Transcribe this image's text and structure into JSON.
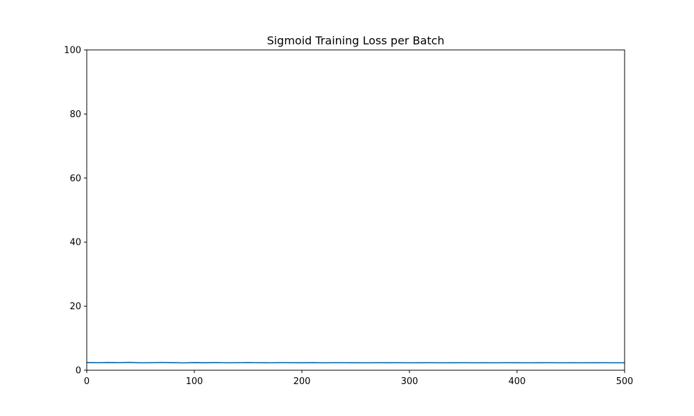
{
  "chart_data": {
    "type": "line",
    "title": "Sigmoid Training Loss per Batch",
    "xlabel": "",
    "ylabel": "",
    "xlim": [
      0,
      500
    ],
    "ylim": [
      0,
      100
    ],
    "xticks": [
      "0",
      "100",
      "200",
      "300",
      "400",
      "500"
    ],
    "yticks": [
      "0",
      "20",
      "40",
      "60",
      "80",
      "100"
    ],
    "grid": false,
    "series": [
      {
        "color": "#1f77b4",
        "x": [
          0,
          10,
          20,
          30,
          40,
          50,
          60,
          70,
          80,
          90,
          100,
          110,
          120,
          130,
          140,
          150,
          160,
          170,
          180,
          190,
          200,
          210,
          220,
          230,
          240,
          250,
          260,
          270,
          280,
          290,
          300,
          310,
          320,
          330,
          340,
          350,
          360,
          370,
          380,
          390,
          400,
          410,
          420,
          430,
          440,
          450,
          460,
          470,
          480,
          490,
          500
        ],
        "y": [
          2.4,
          2.35,
          2.42,
          2.38,
          2.45,
          2.33,
          2.36,
          2.44,
          2.37,
          2.3,
          2.39,
          2.34,
          2.41,
          2.32,
          2.36,
          2.4,
          2.35,
          2.33,
          2.38,
          2.36,
          2.34,
          2.37,
          2.33,
          2.35,
          2.36,
          2.34,
          2.33,
          2.36,
          2.34,
          2.35,
          2.33,
          2.34,
          2.36,
          2.33,
          2.34,
          2.35,
          2.33,
          2.34,
          2.33,
          2.35,
          2.34,
          2.33,
          2.34,
          2.35,
          2.33,
          2.34,
          2.33,
          2.34,
          2.35,
          2.33,
          2.34
        ]
      }
    ]
  }
}
